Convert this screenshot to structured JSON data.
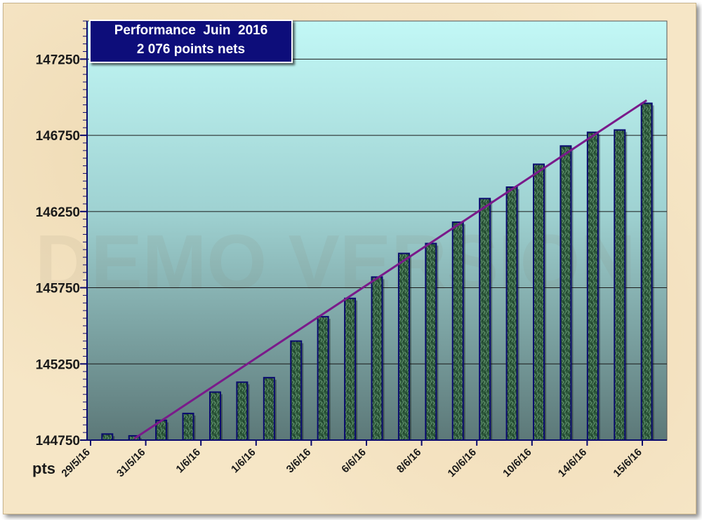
{
  "chart_data": {
    "type": "bar",
    "title": "Performance  Juin  2016",
    "subtitle": "2 076 points nets",
    "ylabel": "pts",
    "xlabel": "",
    "watermark": "DEMO VERSION",
    "ylim": [
      144750,
      147500
    ],
    "yticks": [
      144750,
      145250,
      145750,
      146250,
      146750,
      147250
    ],
    "ytick_labels": [
      "144750",
      "145250",
      "145750",
      "146250",
      "146750",
      "147250"
    ],
    "xtick_labels": [
      "29/5/16",
      "31/5/16",
      "1/6/16",
      "1/6/16",
      "3/6/16",
      "6/6/16",
      "8/6/16",
      "10/6/16",
      "10/6/16",
      "14/6/16",
      "15/6/16"
    ],
    "values": [
      144790,
      144778,
      144880,
      144925,
      145065,
      145130,
      145160,
      145400,
      145560,
      145680,
      145820,
      145975,
      146040,
      146180,
      146335,
      146410,
      146560,
      146680,
      146770,
      146785,
      146960
    ],
    "trendline": {
      "start": 144760,
      "end": 146980
    },
    "grid": true,
    "colors": {
      "bar_fill": "#2e5a3c",
      "bar_edge": "#0a0a6e",
      "trendline": "#7a1a8a",
      "plot_bg_top": "#c2f8f6",
      "plot_bg_bottom": "#5c7878",
      "title_bg": "#0d0d7a"
    }
  }
}
